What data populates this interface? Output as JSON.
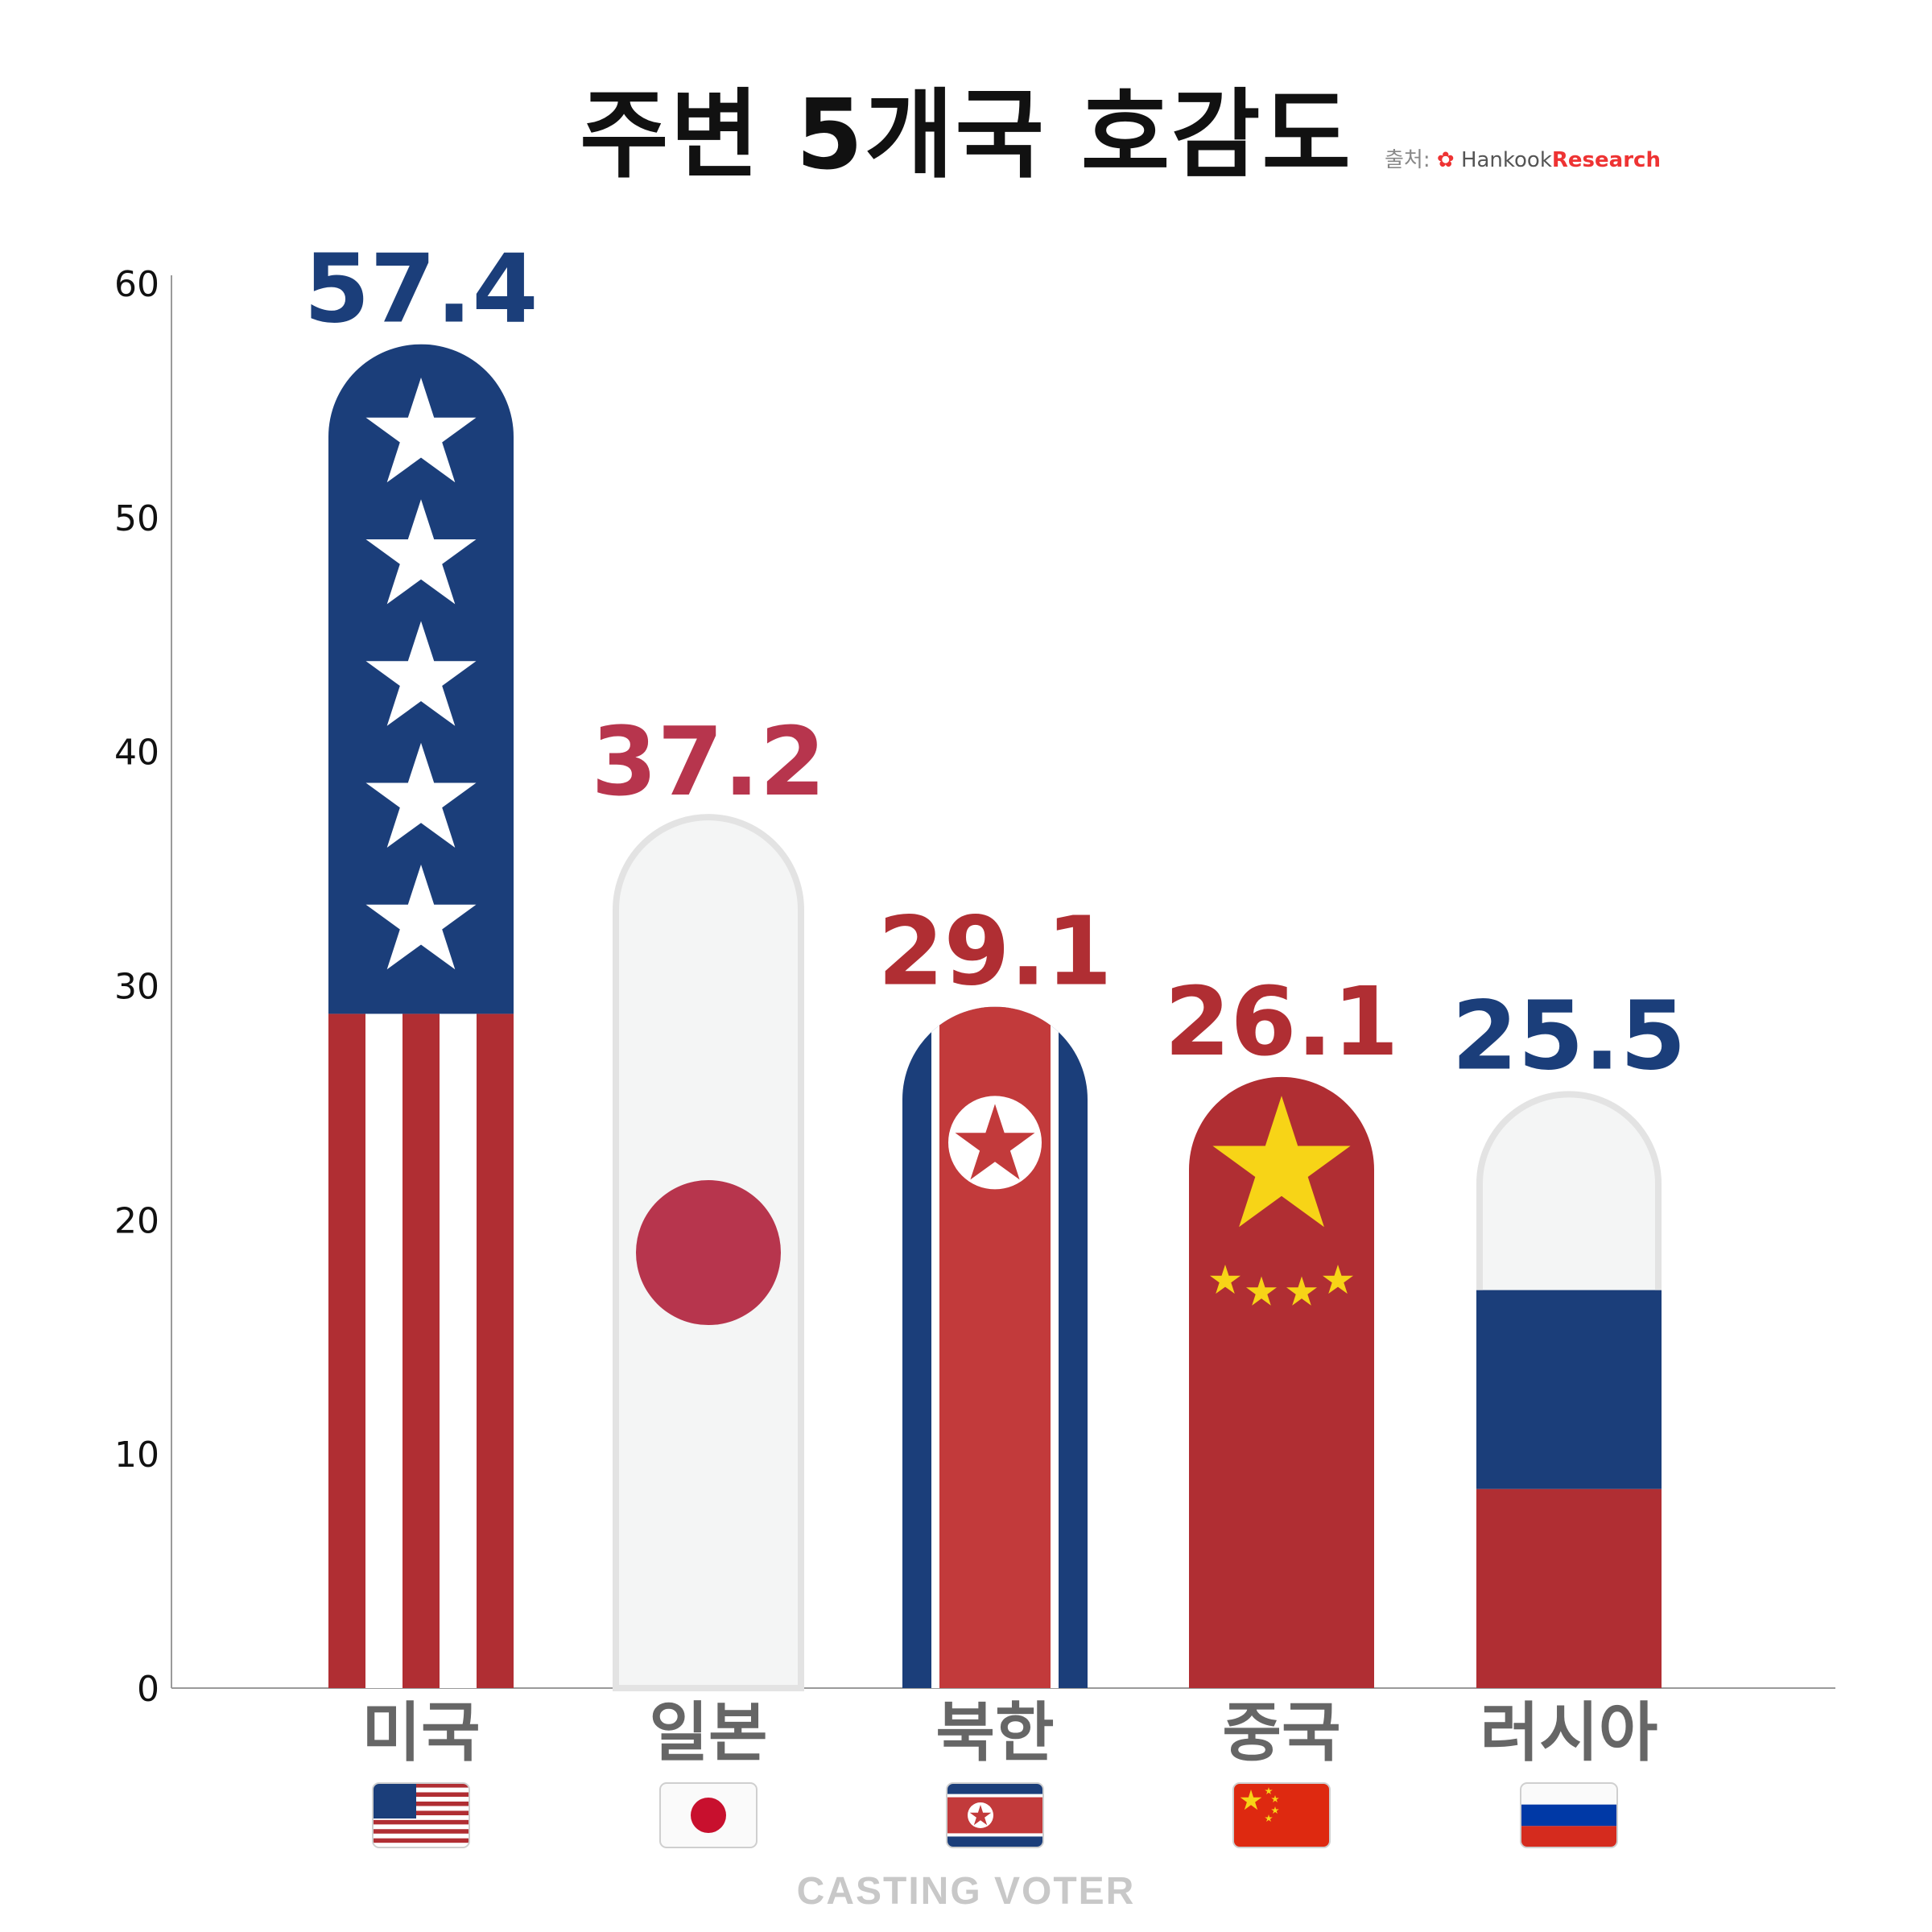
{
  "title": "주변 5개국 호감도",
  "source": {
    "label": "출처:",
    "brand_a": "Hankook",
    "brand_b": "Research"
  },
  "footer": "CASTING VOTER",
  "chart_data": {
    "type": "bar",
    "title": "주변 5개국 호감도",
    "categories": [
      "미국",
      "일본",
      "북한",
      "중국",
      "러시아"
    ],
    "values": [
      57.4,
      37.2,
      29.1,
      26.1,
      25.5
    ],
    "value_labels": [
      "57.4",
      "37.2",
      "29.1",
      "26.1",
      "25.5"
    ],
    "ylim": [
      0,
      60
    ],
    "yticks": [
      0,
      10,
      20,
      30,
      40,
      50,
      60
    ],
    "grid": false,
    "bar_style": [
      "usa-flag",
      "japan-flag",
      "north-korea-flag",
      "china-flag",
      "russia-flag"
    ],
    "label_colors": [
      "#1b3e7a",
      "#b7354d",
      "#b02e33",
      "#b02e33",
      "#1b3e7a"
    ]
  },
  "colors": {
    "navy": "#1b3e7a",
    "red": "#b02e33",
    "jp_red": "#b7354d",
    "nk_red": "#c23a3b",
    "white": "#f4f5f5",
    "gold": "#f7d417",
    "category_text": "#666666"
  }
}
